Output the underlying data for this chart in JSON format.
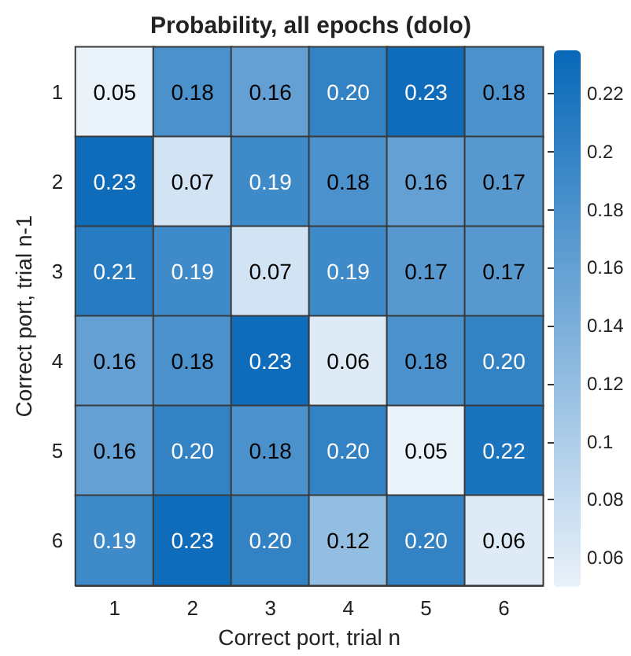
{
  "chart_data": {
    "type": "heatmap",
    "title": "Probability, all epochs (dolo)",
    "xlabel": "Correct port, trial n",
    "ylabel": "Correct port, trial n-1",
    "categories": [
      "1",
      "2",
      "3",
      "4",
      "5",
      "6"
    ],
    "y_categories": [
      "1",
      "2",
      "3",
      "4",
      "5",
      "6"
    ],
    "cells": [
      [
        0.05,
        0.18,
        0.16,
        0.2,
        0.23,
        0.18
      ],
      [
        0.23,
        0.07,
        0.19,
        0.18,
        0.16,
        0.17
      ],
      [
        0.21,
        0.19,
        0.07,
        0.19,
        0.17,
        0.17
      ],
      [
        0.16,
        0.18,
        0.23,
        0.06,
        0.18,
        0.2
      ],
      [
        0.16,
        0.2,
        0.18,
        0.2,
        0.05,
        0.22
      ],
      [
        0.19,
        0.23,
        0.2,
        0.12,
        0.2,
        0.06
      ]
    ],
    "cell_labels": [
      [
        "0.05",
        "0.18",
        "0.16",
        "0.20",
        "0.23",
        "0.18"
      ],
      [
        "0.23",
        "0.07",
        "0.19",
        "0.18",
        "0.16",
        "0.17"
      ],
      [
        "0.21",
        "0.19",
        "0.07",
        "0.19",
        "0.17",
        "0.17"
      ],
      [
        "0.16",
        "0.18",
        "0.23",
        "0.06",
        "0.18",
        "0.20"
      ],
      [
        "0.16",
        "0.20",
        "0.18",
        "0.20",
        "0.05",
        "0.22"
      ],
      [
        "0.19",
        "0.23",
        "0.20",
        "0.12",
        "0.20",
        "0.06"
      ]
    ],
    "clim": [
      0.05,
      0.235
    ],
    "cticks": [
      0.06,
      0.08,
      0.1,
      0.12,
      0.14,
      0.16,
      0.18,
      0.2,
      0.22
    ]
  }
}
